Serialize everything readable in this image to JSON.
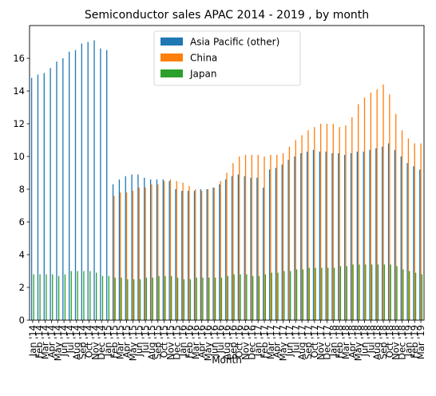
{
  "chart_data": {
    "type": "bar",
    "title": "Semiconductor sales APAC 2014 - 2019 , by month",
    "xlabel": "Month",
    "ylabel": "",
    "ylim": [
      0,
      18
    ],
    "yticks": [
      0,
      2,
      4,
      6,
      8,
      10,
      12,
      14,
      16
    ],
    "legend_position": "top-center",
    "categories": [
      "Jan '14",
      "Feb '14",
      "Mar '14",
      "Apr '14",
      "May '14",
      "Jun '14",
      "Jul '14",
      "Aug '14",
      "Sep '14",
      "Oct '14",
      "Nov '14",
      "Dec '14",
      "Jan '15",
      "Feb '15",
      "Mar '15",
      "Apr '15",
      "May '15",
      "Jun '15",
      "Jul '15",
      "Aug '15",
      "Sep '15",
      "Oct '15",
      "Nov '15",
      "Dec '15",
      "Jan '16",
      "Feb '16",
      "Mar '16",
      "Apr '16",
      "May '16",
      "Jun '16",
      "Jul '16",
      "Aug '16",
      "Sep '16",
      "Oct '16",
      "Nov '16",
      "Dec '16",
      "Jan '17",
      "Feb '17",
      "Mar '17",
      "Apr '17",
      "May '17",
      "Jun '17",
      "Jul '17",
      "Aug '17",
      "Sep '17",
      "Oct '17",
      "Nov '17",
      "Dec '17",
      "Jan '18",
      "Feb '18",
      "Mar '18",
      "Apr '18",
      "May '18",
      "Jun '18",
      "Jul '18",
      "Aug '18",
      "Sep '18",
      "Oct '18",
      "Nov '18",
      "Dec '18",
      "Jan '19",
      "Feb '19",
      "Mar '19"
    ],
    "series": [
      {
        "name": "Asia Pacific (other)",
        "color": "#1f77b4",
        "values": [
          14.8,
          15.0,
          15.1,
          15.4,
          15.8,
          16.0,
          16.4,
          16.5,
          16.9,
          17.0,
          17.1,
          16.6,
          16.5,
          8.3,
          8.6,
          8.8,
          8.9,
          8.9,
          8.7,
          8.6,
          8.6,
          8.6,
          8.5,
          8.0,
          7.9,
          7.9,
          7.9,
          8.0,
          8.0,
          8.1,
          8.3,
          8.6,
          8.8,
          8.9,
          8.8,
          8.7,
          8.7,
          8.1,
          9.2,
          9.3,
          9.5,
          9.8,
          10.0,
          10.2,
          10.3,
          10.4,
          10.3,
          10.3,
          10.2,
          10.2,
          10.1,
          10.2,
          10.3,
          10.3,
          10.4,
          10.5,
          10.6,
          10.8,
          10.4,
          10.0,
          9.6,
          9.4,
          9.2
        ]
      },
      {
        "name": "China",
        "color": "#ff7f0e",
        "values": [
          null,
          null,
          null,
          null,
          null,
          null,
          null,
          null,
          null,
          null,
          null,
          null,
          null,
          7.6,
          7.8,
          7.8,
          7.9,
          8.1,
          8.1,
          8.3,
          8.3,
          8.5,
          8.6,
          8.5,
          8.4,
          8.2,
          8.0,
          7.9,
          8.0,
          8.1,
          8.5,
          9.0,
          9.6,
          10.0,
          10.1,
          10.1,
          10.1,
          10.0,
          10.1,
          10.1,
          10.2,
          10.6,
          11.0,
          11.3,
          11.6,
          11.8,
          12.0,
          12.0,
          12.0,
          11.8,
          11.9,
          12.4,
          13.2,
          13.6,
          13.9,
          14.1,
          14.4,
          13.8,
          12.6,
          11.6,
          11.1,
          10.8,
          10.8
        ]
      },
      {
        "name": "Japan",
        "color": "#2ca02c",
        "values": [
          2.8,
          2.8,
          2.8,
          2.8,
          2.7,
          2.8,
          3.0,
          3.0,
          3.0,
          3.0,
          2.9,
          2.7,
          2.7,
          2.6,
          2.6,
          2.5,
          2.5,
          2.5,
          2.6,
          2.6,
          2.7,
          2.7,
          2.7,
          2.6,
          2.5,
          2.5,
          2.6,
          2.6,
          2.6,
          2.6,
          2.6,
          2.7,
          2.8,
          2.8,
          2.8,
          2.7,
          2.7,
          2.8,
          2.9,
          2.9,
          3.0,
          3.0,
          3.1,
          3.1,
          3.2,
          3.2,
          3.2,
          3.2,
          3.2,
          3.3,
          3.3,
          3.4,
          3.4,
          3.4,
          3.4,
          3.4,
          3.4,
          3.4,
          3.3,
          3.1,
          3.0,
          2.9,
          2.8
        ]
      }
    ]
  }
}
